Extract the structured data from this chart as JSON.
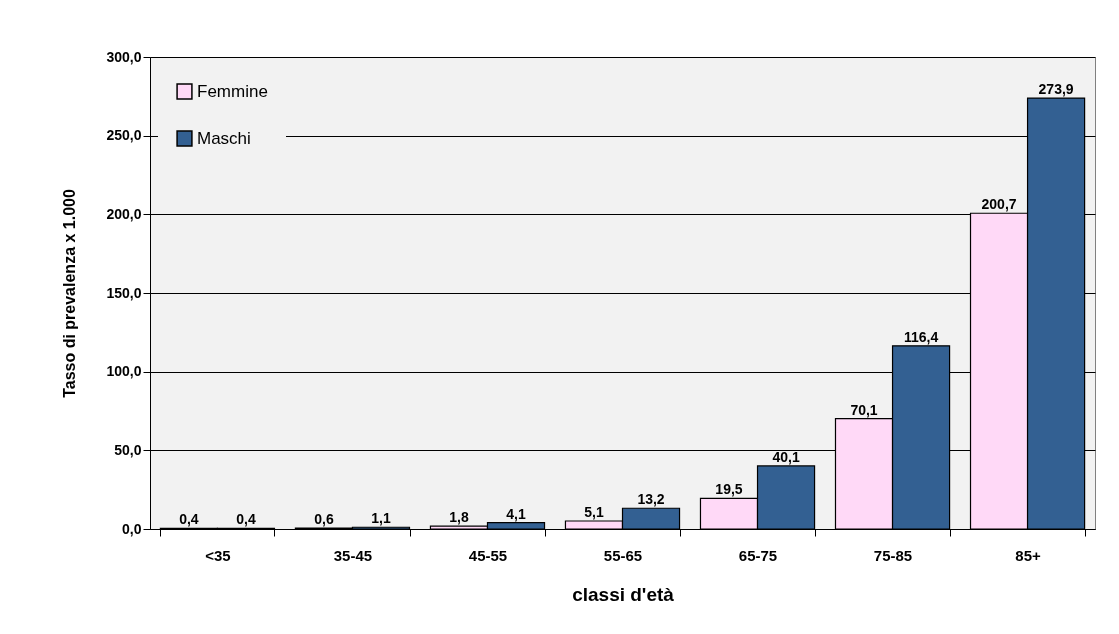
{
  "chart_data": {
    "type": "bar",
    "xlabel": "classi d'età",
    "ylabel": "Tasso di prevalenza x 1.000",
    "categories": [
      "<35",
      "35-45",
      "45-55",
      "55-65",
      "65-75",
      "75-85",
      "85+"
    ],
    "series": [
      {
        "name": "Femmine",
        "color": "#ffd9f7",
        "values": [
          0.4,
          0.6,
          1.8,
          5.1,
          19.5,
          70.1,
          200.7
        ],
        "value_labels": [
          "0,4",
          "0,6",
          "1,8",
          "5,1",
          "19,5",
          "70,1",
          "200,7"
        ]
      },
      {
        "name": "Maschi",
        "color": "#336092",
        "values": [
          0.4,
          1.1,
          4.1,
          13.2,
          40.1,
          116.4,
          273.9
        ],
        "value_labels": [
          "0,4",
          "1,1",
          "4,1",
          "13,2",
          "40,1",
          "116,4",
          "273,9"
        ]
      }
    ],
    "ylim": [
      0,
      300
    ],
    "yticks": [
      {
        "value": 0,
        "label": "0,0"
      },
      {
        "value": 50,
        "label": "50,0"
      },
      {
        "value": 100,
        "label": "100,0"
      },
      {
        "value": 150,
        "label": "150,0"
      },
      {
        "value": 200,
        "label": "200,0"
      },
      {
        "value": 250,
        "label": "250,0"
      },
      {
        "value": 300,
        "label": "300,0"
      }
    ],
    "grid": "y",
    "legend": "top left"
  }
}
